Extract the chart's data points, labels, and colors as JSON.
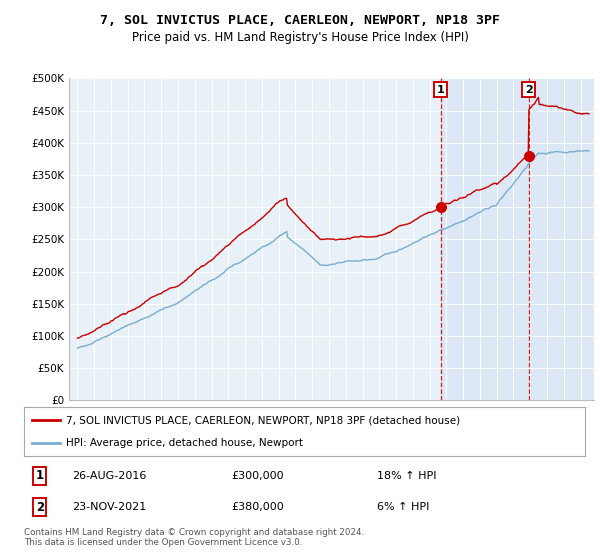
{
  "title": "7, SOL INVICTUS PLACE, CAERLEON, NEWPORT, NP18 3PF",
  "subtitle": "Price paid vs. HM Land Registry's House Price Index (HPI)",
  "property_color": "#cc0000",
  "hpi_color": "#7aadcf",
  "background_color": "#e8f0f8",
  "shade_color": "#dce8f5",
  "sale1_year": 2016.65,
  "sale1_price": 300000,
  "sale2_year": 2021.9,
  "sale2_price": 380000,
  "legend1": "7, SOL INVICTUS PLACE, CAERLEON, NEWPORT, NP18 3PF (detached house)",
  "legend2": "HPI: Average price, detached house, Newport",
  "footer": "Contains HM Land Registry data © Crown copyright and database right 2024.\nThis data is licensed under the Open Government Licence v3.0.",
  "ylim": [
    0,
    500000
  ],
  "yticks": [
    0,
    50000,
    100000,
    150000,
    200000,
    250000,
    300000,
    350000,
    400000,
    450000,
    500000
  ],
  "ytick_labels": [
    "£0",
    "£50K",
    "£100K",
    "£150K",
    "£200K",
    "£250K",
    "£300K",
    "£350K",
    "£400K",
    "£450K",
    "£500K"
  ],
  "xlim": [
    1994.5,
    2025.8
  ]
}
